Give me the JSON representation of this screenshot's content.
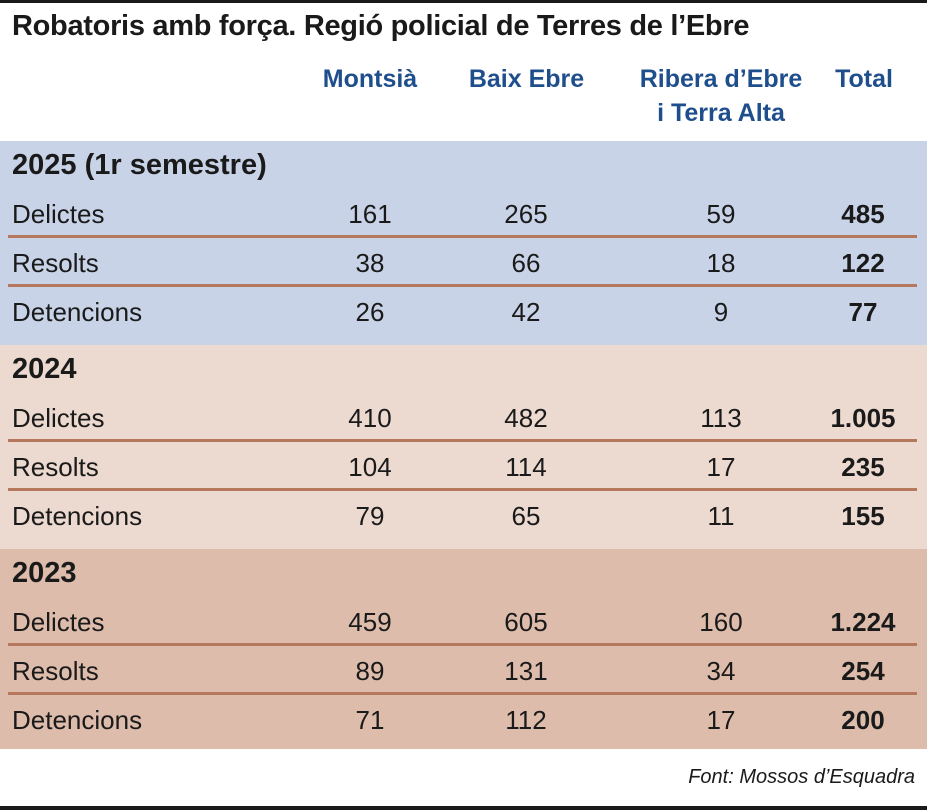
{
  "chart_data": {
    "type": "table",
    "title": "Robatoris amb força. Regió policial de Terres de l’Ebre",
    "columns": [
      {
        "line1": "Montsià",
        "line2": ""
      },
      {
        "line1": "Baix Ebre",
        "line2": ""
      },
      {
        "line1": "Ribera d’Ebre",
        "line2": "i Terra Alta"
      },
      {
        "line1": "Total",
        "line2": ""
      }
    ],
    "sections": [
      {
        "title": "2025 (1r semestre)",
        "rows": [
          {
            "label": "Delictes",
            "values": [
              "161",
              "265",
              "59",
              "485"
            ]
          },
          {
            "label": "Resolts",
            "values": [
              "38",
              "66",
              "18",
              "122"
            ]
          },
          {
            "label": "Detencions",
            "values": [
              "26",
              "42",
              "9",
              "77"
            ]
          }
        ]
      },
      {
        "title": "2024",
        "rows": [
          {
            "label": "Delictes",
            "values": [
              "410",
              "482",
              "113",
              "1.005"
            ]
          },
          {
            "label": "Resolts",
            "values": [
              "104",
              "114",
              "17",
              "235"
            ]
          },
          {
            "label": "Detencions",
            "values": [
              "79",
              "65",
              "11",
              "155"
            ]
          }
        ]
      },
      {
        "title": "2023",
        "rows": [
          {
            "label": "Delictes",
            "values": [
              "459",
              "605",
              "160",
              "1.224"
            ]
          },
          {
            "label": "Resolts",
            "values": [
              "89",
              "131",
              "34",
              "254"
            ]
          },
          {
            "label": "Detencions",
            "values": [
              "71",
              "112",
              "17",
              "200"
            ]
          }
        ]
      }
    ],
    "source": "Font: Mossos d’Esquadra",
    "colors": {
      "header_text": "#1f4e8c",
      "section_2025": "#c9d3e8",
      "section_2024": "#ecd9cf",
      "section_2023": "#ddbcab",
      "separator": "#b5785c"
    }
  }
}
